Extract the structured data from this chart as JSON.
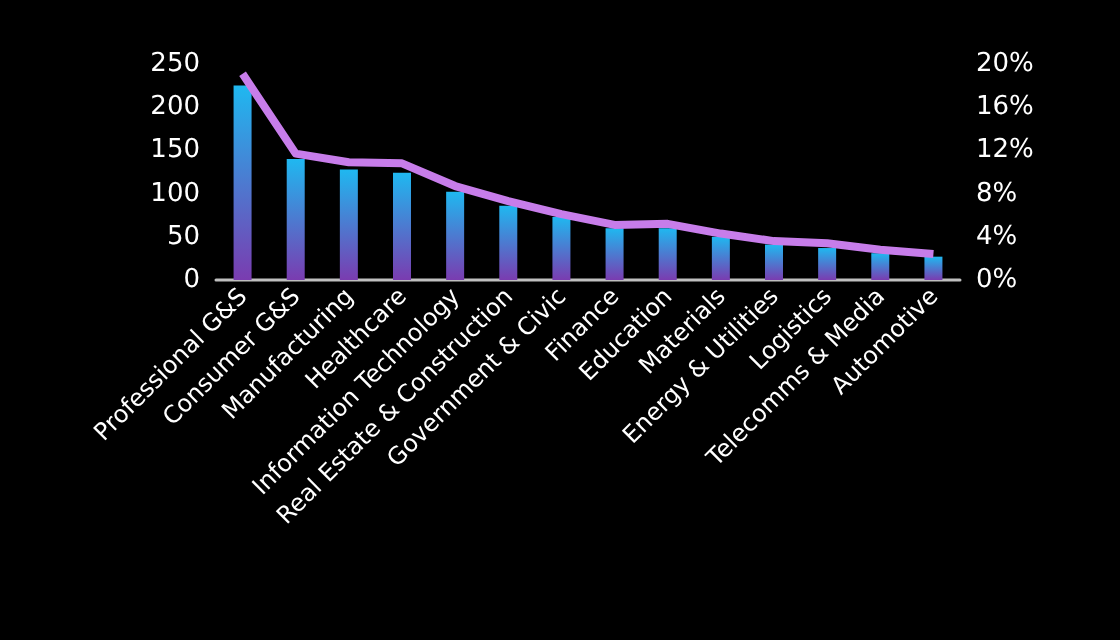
{
  "chart_data": {
    "type": "bar",
    "categories": [
      "Professional G&S",
      "Consumer G&S",
      "Manufacturing",
      "Healthcare",
      "Information Technology",
      "Real Estate & Construction",
      "Government & Civic",
      "Finance",
      "Education",
      "Materials",
      "Energy & Utilities",
      "Logistics",
      "Telecomms & Media",
      "Automotive"
    ],
    "series": [
      {
        "color": "#1fb8f0",
        "values": [
          225,
          140,
          128,
          124,
          102,
          86,
          73,
          60,
          60,
          50,
          41,
          37,
          31,
          27
        ]
      },
      {
        "type": "line",
        "axis": "y2",
        "color": "#c77dea",
        "values": [
          19.1,
          11.7,
          10.9,
          10.8,
          8.7,
          7.3,
          6.1,
          5.1,
          5.2,
          4.3,
          3.6,
          3.4,
          2.8,
          2.4
        ]
      }
    ],
    "ylim": [
      0,
      250
    ],
    "yticks": [
      0,
      50,
      100,
      150,
      200,
      250
    ],
    "y2lim": [
      0,
      20
    ],
    "y2ticks": [
      {
        "value": 0,
        "label": "0%"
      },
      {
        "value": 4,
        "label": "4%"
      },
      {
        "value": 8,
        "label": "8%"
      },
      {
        "value": 12,
        "label": "12%"
      },
      {
        "value": 16,
        "label": "16%"
      },
      {
        "value": 20,
        "label": "20%"
      }
    ],
    "grid": false,
    "marker": "none"
  }
}
